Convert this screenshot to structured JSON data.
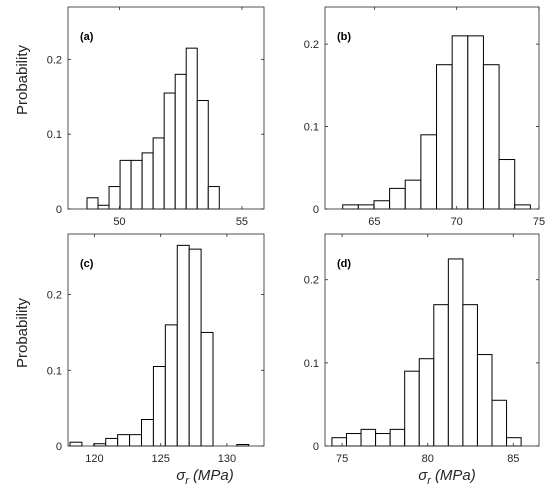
{
  "figure": {
    "ylabel": "Probability",
    "xlabel": "σr (MPa)",
    "xlabel_main": "σ",
    "xlabel_sub": "r",
    "xlabel_unit": "(MPa)"
  },
  "chart_data": [
    {
      "type": "bar",
      "panel_label": "(a)",
      "ylabel": "Probability",
      "xlabel": "",
      "xlim": [
        47.9,
        55.9
      ],
      "ylim": [
        0,
        0.27
      ],
      "xticks": [
        50,
        55
      ],
      "yticks": [
        0,
        0.1,
        0.2
      ],
      "bin_width": 0.45,
      "bin_centers": [
        48.9,
        49.35,
        49.8,
        50.25,
        50.7,
        51.15,
        51.6,
        52.05,
        52.5,
        52.95,
        53.4,
        53.85,
        54.3
      ],
      "values": [
        0.015,
        0.005,
        0.03,
        0.065,
        0.065,
        0.075,
        0.095,
        0.155,
        0.18,
        0.215,
        0.145,
        0.03,
        0.0
      ]
    },
    {
      "type": "bar",
      "panel_label": "(b)",
      "ylabel": "",
      "xlabel": "",
      "xlim": [
        62.0,
        75.0
      ],
      "ylim": [
        0,
        0.245
      ],
      "xticks": [
        65,
        70,
        75
      ],
      "yticks": [
        0,
        0.1,
        0.2
      ],
      "bin_width": 0.95,
      "bin_centers": [
        63.55,
        64.5,
        65.45,
        66.4,
        67.35,
        68.3,
        69.25,
        70.2,
        71.15,
        72.1,
        73.05,
        74.0
      ],
      "values": [
        0.005,
        0.005,
        0.01,
        0.025,
        0.035,
        0.09,
        0.175,
        0.21,
        0.21,
        0.175,
        0.06,
        0.005
      ]
    },
    {
      "type": "bar",
      "panel_label": "(c)",
      "ylabel": "Probability",
      "xlabel": "σr (MPa)",
      "xlim": [
        118.0,
        132.8
      ],
      "ylim": [
        0,
        0.28
      ],
      "xticks": [
        120,
        125,
        130
      ],
      "yticks": [
        0,
        0.1,
        0.2
      ],
      "bin_width": 0.9,
      "bin_centers": [
        118.6,
        119.5,
        120.4,
        121.3,
        122.2,
        123.1,
        124.0,
        124.9,
        125.8,
        126.7,
        127.6,
        128.5,
        129.4,
        130.3,
        131.2
      ],
      "values": [
        0.005,
        0.0,
        0.003,
        0.01,
        0.015,
        0.015,
        0.035,
        0.105,
        0.16,
        0.265,
        0.26,
        0.15,
        0.0,
        0.0,
        0.002
      ]
    },
    {
      "type": "bar",
      "panel_label": "(d)",
      "ylabel": "",
      "xlabel": "σr (MPa)",
      "xlim": [
        74.0,
        86.5
      ],
      "ylim": [
        0,
        0.255
      ],
      "xticks": [
        75,
        80,
        85
      ],
      "yticks": [
        0,
        0.1,
        0.2
      ],
      "bin_width": 0.85,
      "bin_centers": [
        74.83,
        75.68,
        76.53,
        77.38,
        78.23,
        79.08,
        79.93,
        80.78,
        81.63,
        82.48,
        83.33,
        84.18,
        85.03
      ],
      "values": [
        0.01,
        0.015,
        0.02,
        0.015,
        0.02,
        0.09,
        0.105,
        0.17,
        0.225,
        0.17,
        0.11,
        0.055,
        0.01
      ]
    }
  ]
}
